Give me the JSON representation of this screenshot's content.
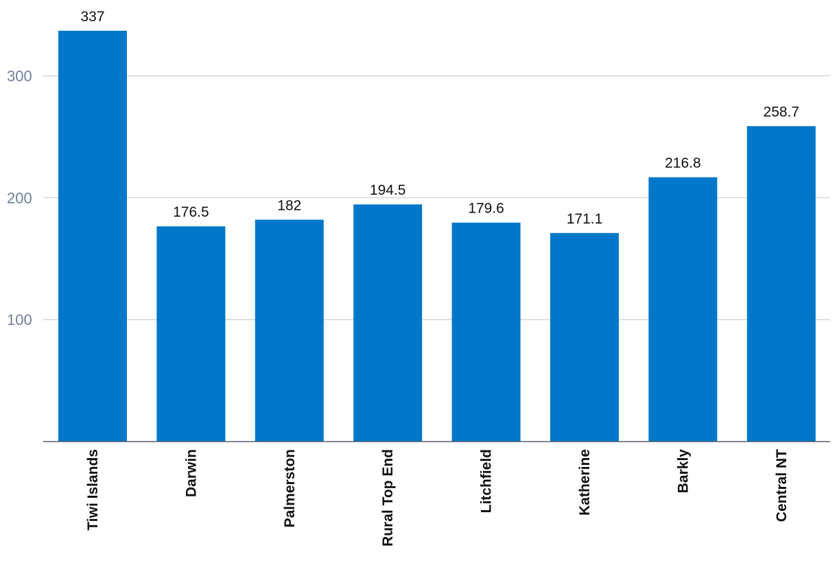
{
  "chart_data": {
    "type": "bar",
    "categories": [
      "Tiwi Islands",
      "Darwin",
      "Palmerston",
      "Rural Top End",
      "Litchfield",
      "Katherine",
      "Barkly",
      "Central NT"
    ],
    "values": [
      337,
      176.5,
      182,
      194.5,
      179.6,
      171.1,
      216.8,
      258.7
    ],
    "value_labels": [
      "337",
      "176.5",
      "182",
      "194.5",
      "179.6",
      "171.1",
      "216.8",
      "258.7"
    ],
    "title": "",
    "xlabel": "",
    "ylabel": "",
    "ylim": [
      0,
      350
    ],
    "yticks": [
      100,
      200,
      300
    ],
    "ytick_labels": [
      "100",
      "200",
      "300"
    ],
    "grid": true,
    "legend": "none",
    "bar_color": "#0077c8"
  }
}
